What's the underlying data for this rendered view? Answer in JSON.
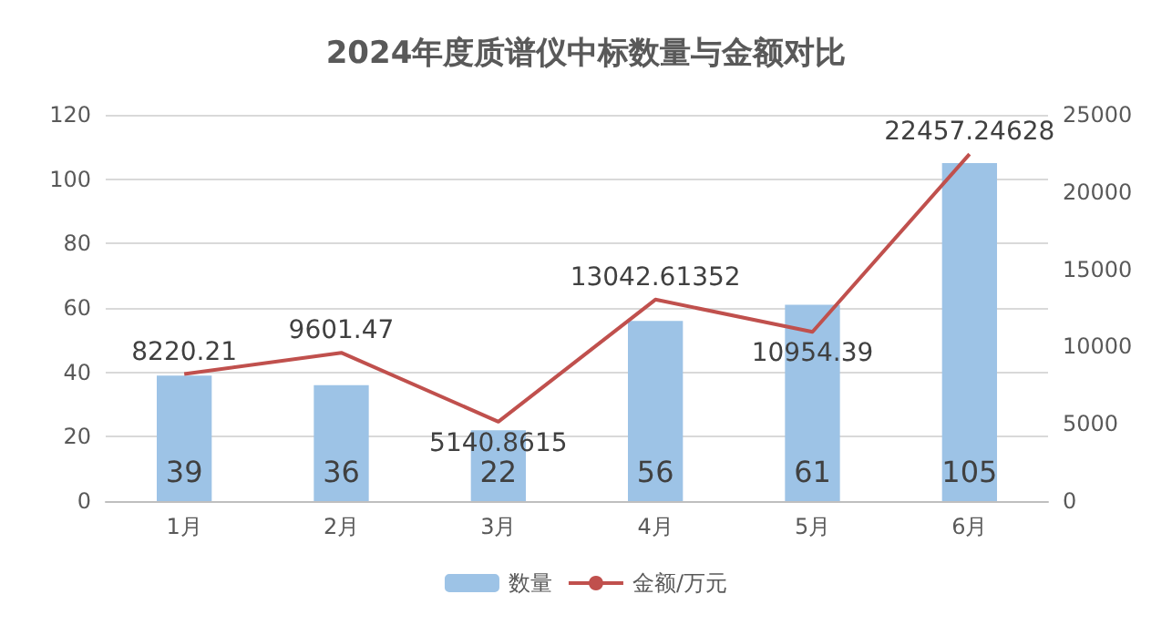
{
  "chart_data": {
    "type": "bar",
    "title": "2024年度质谱仪中标数量与金额对比",
    "categories": [
      "1月",
      "2月",
      "3月",
      "4月",
      "5月",
      "6月"
    ],
    "series": [
      {
        "name": "数量",
        "color": "#9dc3e6",
        "values": [
          39,
          36,
          22,
          56,
          61,
          105
        ]
      },
      {
        "name": "金额/万元",
        "type": "line",
        "axis": "y2",
        "color": "#c0504d",
        "values": [
          8220.21,
          9601.47,
          5140.8615,
          13042.61352,
          10954.39,
          22457.24628
        ]
      }
    ],
    "data_labels": true,
    "ylim": [
      0,
      120
    ],
    "yticks": [
      0,
      20,
      40,
      60,
      80,
      100,
      120
    ],
    "y2lim": [
      0,
      25000
    ],
    "y2ticks": [
      0,
      5000,
      10000,
      15000,
      20000,
      25000
    ],
    "grid": "y",
    "legend": "bottom",
    "marker": "none",
    "line_style": "solid"
  }
}
